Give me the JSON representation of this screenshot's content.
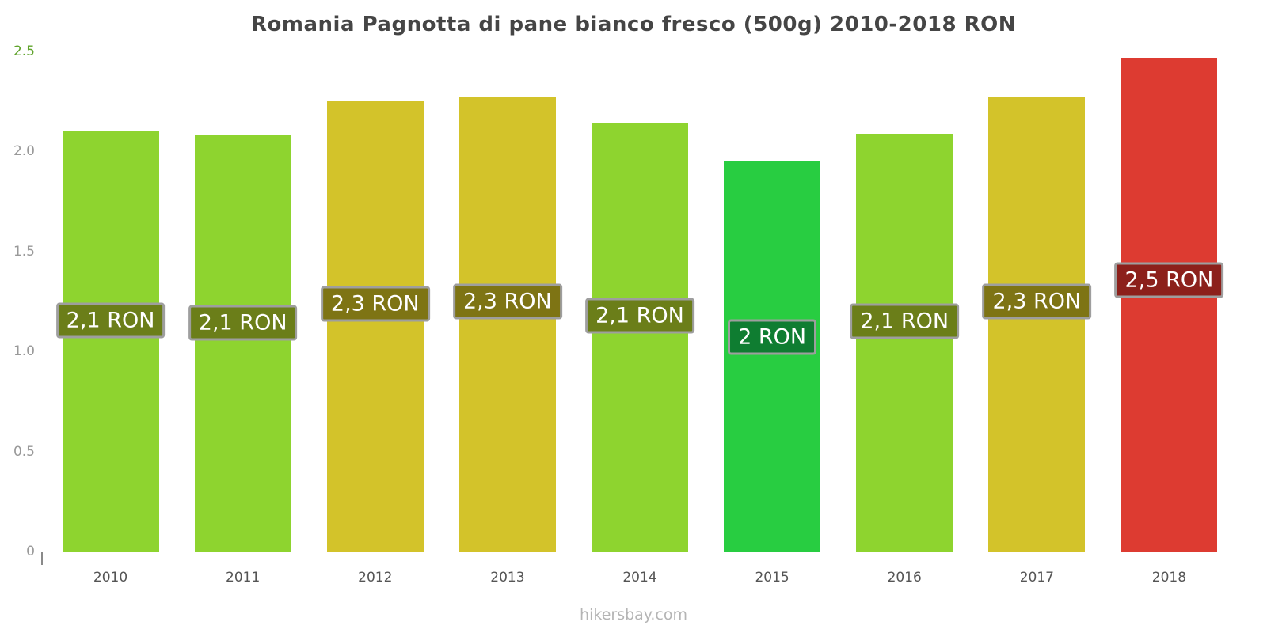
{
  "footer": "hikersbay.com",
  "chart_data": {
    "type": "bar",
    "title": "Romania Pagnotta di pane bianco fresco (500g) 2010-2018 RON",
    "xlabel": "",
    "ylabel": "",
    "ylim": [
      0,
      2.5
    ],
    "grid": false,
    "legend": "none",
    "categories": [
      "2010",
      "2011",
      "2012",
      "2013",
      "2014",
      "2015",
      "2016",
      "2017",
      "2018"
    ],
    "values": [
      2.1,
      2.08,
      2.25,
      2.27,
      2.14,
      1.95,
      2.09,
      2.27,
      2.47
    ],
    "bar_value_labels": [
      "2,1 RON",
      "2,1 RON",
      "2,3 RON",
      "2,3 RON",
      "2,1 RON",
      "2 RON",
      "2,1 RON",
      "2,3 RON",
      "2,5 RON"
    ],
    "bar_colors": [
      "#8ED42F",
      "#8ED42F",
      "#D3C32A",
      "#D3C32A",
      "#8ED42F",
      "#28CD41",
      "#8ED42F",
      "#D3C32A",
      "#DD3B31"
    ],
    "label_bg_colors": [
      "#6B7E19",
      "#6B7E19",
      "#7E7414",
      "#7E7414",
      "#6B7E19",
      "#0F7D31",
      "#6B7E19",
      "#7E7414",
      "#8C201B"
    ],
    "yticks": [
      {
        "label": "2.5",
        "value": 2.5,
        "color": "#5FA32B"
      },
      {
        "label": "2.0",
        "value": 2.0,
        "color": "#999999"
      },
      {
        "label": "1.5",
        "value": 1.5,
        "color": "#999999"
      },
      {
        "label": "1.0",
        "value": 1.0,
        "color": "#999999"
      },
      {
        "label": "0.5",
        "value": 0.5,
        "color": "#999999"
      },
      {
        "label": "0",
        "value": 0,
        "color": "#999999"
      }
    ]
  }
}
